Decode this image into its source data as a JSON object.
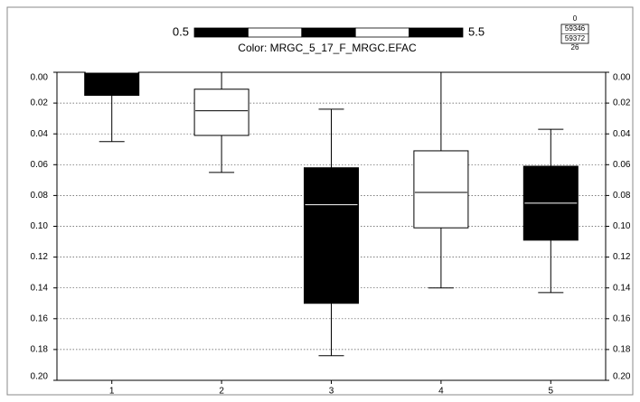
{
  "chart_data": {
    "type": "box",
    "categories": [
      "1",
      "2",
      "3",
      "4",
      "5"
    ],
    "min": [
      0,
      0,
      0.024,
      0,
      0.037
    ],
    "q1": [
      0,
      0.011,
      0.062,
      0.051,
      0.061
    ],
    "median": [
      0,
      0.025,
      0.086,
      0.078,
      0.085
    ],
    "q3": [
      0.015,
      0.041,
      0.15,
      0.101,
      0.109
    ],
    "max": [
      0.045,
      0.065,
      0.184,
      0.14,
      0.143
    ],
    "box_colors": [
      "#000000",
      "#ffffff",
      "#000000",
      "#ffffff",
      "#000000"
    ],
    "ylim": [
      0,
      0.2
    ],
    "y_inverted": true,
    "yticks": [
      {
        "value": 0,
        "label": "0.00"
      },
      {
        "value": 0.02,
        "label": "0.02"
      },
      {
        "value": 0.04,
        "label": "0.04"
      },
      {
        "value": 0.06,
        "label": "0.06"
      },
      {
        "value": 0.08,
        "label": "0.08"
      },
      {
        "value": 0.1,
        "label": "0.10"
      },
      {
        "value": 0.12,
        "label": "0.12"
      },
      {
        "value": 0.14,
        "label": "0.14"
      },
      {
        "value": 0.16,
        "label": "0.16"
      },
      {
        "value": 0.18,
        "label": "0.18"
      },
      {
        "value": 0.2,
        "label": "0.20"
      }
    ],
    "grid": true,
    "colorbar": {
      "range": [
        0.5,
        5.5
      ],
      "colors": [
        "#000000",
        "#ffffff",
        "#000000",
        "#ffffff",
        "#000000"
      ],
      "caption": "Color: MRGC_5_17_F_MRGC.EFAC"
    },
    "info_box": [
      "0",
      "59346",
      "59372",
      "26"
    ]
  }
}
